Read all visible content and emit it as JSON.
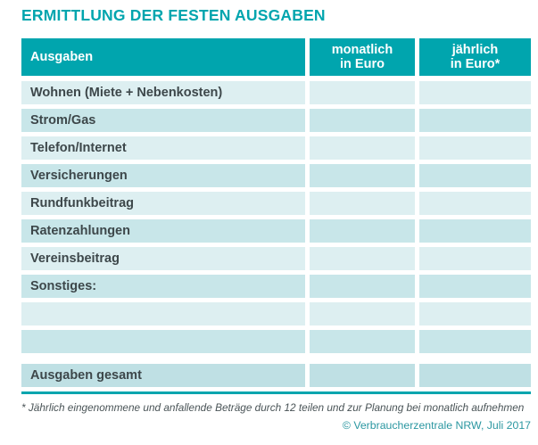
{
  "title": "ERMITTLUNG DER FESTEN AUSGABEN",
  "table": {
    "header": {
      "expenses": "Ausgaben",
      "monthly_line1": "monatlich",
      "monthly_line2": "in Euro",
      "yearly_line1": "jährlich",
      "yearly_line2": "in Euro*"
    },
    "rows": [
      {
        "label": "Wohnen (Miete + Nebenkosten)",
        "monthly": "",
        "yearly": "",
        "shade": "light"
      },
      {
        "label": "Strom/Gas",
        "monthly": "",
        "yearly": "",
        "shade": "dark"
      },
      {
        "label": "Telefon/Internet",
        "monthly": "",
        "yearly": "",
        "shade": "light"
      },
      {
        "label": "Versicherungen",
        "monthly": "",
        "yearly": "",
        "shade": "dark"
      },
      {
        "label": "Rundfunkbeitrag",
        "monthly": "",
        "yearly": "",
        "shade": "light"
      },
      {
        "label": "Ratenzahlungen",
        "monthly": "",
        "yearly": "",
        "shade": "dark"
      },
      {
        "label": "Vereinsbeitrag",
        "monthly": "",
        "yearly": "",
        "shade": "light"
      },
      {
        "label": "Sonstiges:",
        "monthly": "",
        "yearly": "",
        "shade": "dark"
      },
      {
        "label": "",
        "monthly": "",
        "yearly": "",
        "shade": "light"
      },
      {
        "label": "",
        "monthly": "",
        "yearly": "",
        "shade": "dark"
      }
    ],
    "total": {
      "label": "Ausgaben gesamt",
      "monthly": "",
      "yearly": ""
    }
  },
  "footnote": "* Jährlich eingenommene und anfallende Beträge durch 12 teilen und zur Planung bei monatlich aufnehmen",
  "copyright": "© Verbraucherzentrale NRW, Juli 2017",
  "colors": {
    "teal": "#00a5ae",
    "row_light": "#ddeff1",
    "row_dark": "#c8e6e9",
    "row_total": "#bfe0e4",
    "label_text": "#3d474a",
    "footnote_text": "#4a5457"
  }
}
